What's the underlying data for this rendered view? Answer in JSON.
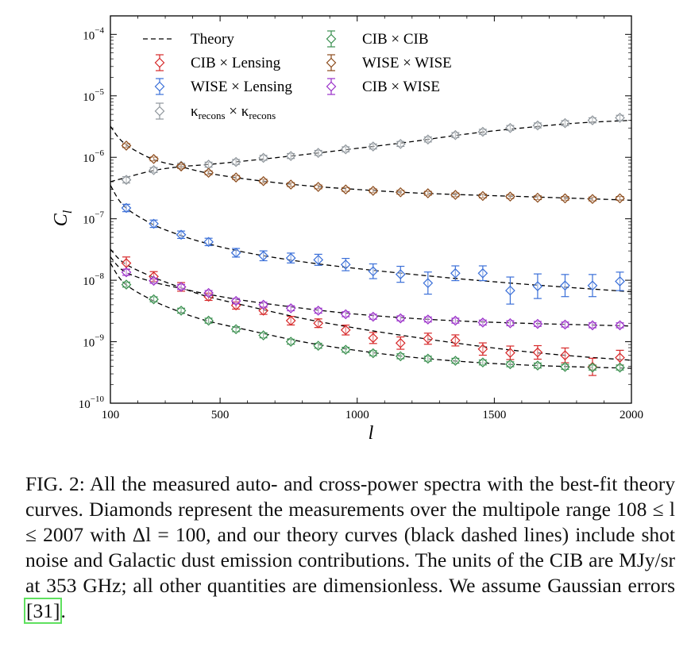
{
  "chart_data": {
    "type": "scatter",
    "xlabel": "l",
    "ylabel": "C_l",
    "xlim": [
      100,
      2000
    ],
    "ylim": [
      1e-10,
      0.0002
    ],
    "log_y": true,
    "grid": false,
    "legend_placement": "top-left, two columns",
    "x_ticks": [
      100,
      500,
      1000,
      1500,
      2000
    ],
    "y_ticks": [
      1e-10,
      1e-09,
      1e-08,
      1e-07,
      1e-06,
      1e-05,
      0.0001
    ],
    "y_tick_labels": [
      {
        "base": "10",
        "exp": "−10"
      },
      {
        "base": "10",
        "exp": "−9"
      },
      {
        "base": "10",
        "exp": "−8"
      },
      {
        "base": "10",
        "exp": "−7"
      },
      {
        "base": "10",
        "exp": "−6"
      },
      {
        "base": "10",
        "exp": "−5"
      },
      {
        "base": "10",
        "exp": "−4"
      }
    ],
    "x": [
      158,
      258,
      358,
      458,
      558,
      658,
      758,
      858,
      958,
      1058,
      1158,
      1258,
      1358,
      1458,
      1558,
      1658,
      1758,
      1858,
      1958
    ],
    "theory_label": "Theory",
    "theory_curves": [
      {
        "series": "kappa",
        "x": [
          100,
          150,
          250,
          350,
          450,
          600,
          800,
          1000,
          1200,
          1400,
          1600,
          1800,
          2000
        ],
        "y": [
          4e-07,
          4.6e-07,
          6e-07,
          7e-07,
          7.6e-07,
          8.8e-07,
          1.1e-06,
          1.4e-06,
          1.8e-06,
          2.4e-06,
          3e-06,
          3.6e-06,
          4e-06
        ]
      },
      {
        "series": "wise_wise",
        "x": [
          100,
          150,
          250,
          350,
          450,
          600,
          800,
          1000,
          1200,
          1400,
          1600,
          1800,
          2000
        ],
        "y": [
          3.2e-06,
          1.7e-06,
          9.5e-07,
          7.2e-07,
          5.6e-07,
          4.4e-07,
          3.5e-07,
          3e-07,
          2.65e-07,
          2.45e-07,
          2.3e-07,
          2.15e-07,
          2e-07
        ]
      },
      {
        "series": "wise_lensing",
        "x": [
          100,
          150,
          250,
          350,
          450,
          600,
          800,
          1000,
          1200,
          1400,
          1600,
          1800,
          2000
        ],
        "y": [
          3.5e-07,
          1.6e-07,
          8.3e-08,
          5.5e-08,
          4e-08,
          2.8e-08,
          2e-08,
          1.55e-08,
          1.25e-08,
          1.03e-08,
          8.7e-09,
          7.5e-09,
          6.5e-09
        ]
      },
      {
        "series": "cib_lensing",
        "x": [
          100,
          150,
          250,
          350,
          450,
          600,
          800,
          1000,
          1200,
          1400,
          1600,
          1800,
          2000
        ],
        "y": [
          3.2e-08,
          1.9e-08,
          1.15e-08,
          7.8e-09,
          5.5e-09,
          3.8e-09,
          2.4e-09,
          1.65e-09,
          1.2e-09,
          9e-10,
          7e-10,
          5.8e-10,
          5e-10
        ]
      },
      {
        "series": "cib_wise",
        "x": [
          100,
          150,
          250,
          350,
          450,
          600,
          800,
          1000,
          1200,
          1400,
          1600,
          1800,
          2000
        ],
        "y": [
          2.4e-08,
          1.4e-08,
          9.5e-09,
          7.5e-09,
          6e-09,
          4.6e-09,
          3.5e-09,
          2.8e-09,
          2.4e-09,
          2.15e-09,
          2e-09,
          1.9e-09,
          1.8e-09
        ]
      },
      {
        "series": "cib_cib",
        "x": [
          100,
          150,
          250,
          350,
          450,
          600,
          800,
          1000,
          1200,
          1400,
          1600,
          1800,
          2000
        ],
        "y": [
          1.9e-08,
          9e-09,
          4.8e-09,
          3.1e-09,
          2.2e-09,
          1.55e-09,
          1e-09,
          7.2e-10,
          5.6e-10,
          4.7e-10,
          4.2e-10,
          3.9e-10,
          3.7e-10
        ]
      }
    ],
    "series": [
      {
        "key": "cib_lensing",
        "name": "CIB × Lensing",
        "color": "#d62728",
        "y": [
          1.9e-08,
          1.15e-08,
          7.8e-09,
          5.4e-09,
          3.9e-09,
          3.2e-09,
          2.2e-09,
          2e-09,
          1.55e-09,
          1.15e-09,
          9.5e-10,
          1.12e-09,
          1.05e-09,
          7.6e-10,
          6.6e-10,
          6.7e-10,
          6e-10,
          3.9e-10,
          5.5e-10
        ],
        "err": [
          0.1,
          0.08,
          0.07,
          0.06,
          0.06,
          0.06,
          0.07,
          0.07,
          0.08,
          0.09,
          0.1,
          0.09,
          0.09,
          0.1,
          0.11,
          0.11,
          0.12,
          0.14,
          0.12
        ]
      },
      {
        "key": "wise_lensing",
        "name": "WISE × Lensing",
        "color": "#3a6fd8",
        "y": [
          1.5e-07,
          8.3e-08,
          5.5e-08,
          4.2e-08,
          2.8e-08,
          2.5e-08,
          2.3e-08,
          2.15e-08,
          1.8e-08,
          1.4e-08,
          1.25e-08,
          9e-09,
          1.3e-08,
          1.3e-08,
          6.8e-09,
          8e-09,
          8.2e-09,
          8.2e-09,
          9.6e-09
        ],
        "err": [
          0.06,
          0.06,
          0.06,
          0.06,
          0.07,
          0.08,
          0.08,
          0.09,
          0.1,
          0.12,
          0.13,
          0.18,
          0.12,
          0.12,
          0.22,
          0.2,
          0.18,
          0.18,
          0.15
        ]
      },
      {
        "key": "kappa",
        "name": "κrecons × κrecons",
        "color": "#8f969c",
        "y": [
          4.3e-07,
          6.2e-07,
          7.3e-07,
          7.6e-07,
          8.4e-07,
          9.8e-07,
          1.05e-06,
          1.18e-06,
          1.35e-06,
          1.5e-06,
          1.65e-06,
          1.95e-06,
          2.3e-06,
          2.6e-06,
          3e-06,
          3.3e-06,
          3.6e-06,
          4e-06,
          4.4e-06
        ],
        "err": [
          0.05,
          0.04,
          0.04,
          0.04,
          0.04,
          0.04,
          0.04,
          0.04,
          0.04,
          0.04,
          0.04,
          0.04,
          0.04,
          0.04,
          0.04,
          0.04,
          0.04,
          0.04,
          0.04
        ]
      },
      {
        "key": "cib_cib",
        "name": "CIB × CIB",
        "color": "#3a8f4f",
        "y": [
          8.5e-09,
          4.9e-09,
          3.2e-09,
          2.2e-09,
          1.6e-09,
          1.27e-09,
          1e-09,
          8.6e-10,
          7.4e-10,
          6.5e-10,
          5.8e-10,
          5.3e-10,
          4.9e-10,
          4.6e-10,
          4.3e-10,
          4.1e-10,
          3.9e-10,
          3.8e-10,
          3.8e-10
        ],
        "err": [
          0.04,
          0.04,
          0.04,
          0.04,
          0.04,
          0.04,
          0.04,
          0.04,
          0.04,
          0.04,
          0.04,
          0.04,
          0.04,
          0.04,
          0.04,
          0.04,
          0.04,
          0.04,
          0.04
        ]
      },
      {
        "key": "wise_wise",
        "name": "WISE × WISE",
        "color": "#8b4a1a",
        "y": [
          1.55e-06,
          9.4e-07,
          7.1e-07,
          5.6e-07,
          4.7e-07,
          4.1e-07,
          3.6e-07,
          3.3e-07,
          3e-07,
          2.85e-07,
          2.7e-07,
          2.6e-07,
          2.45e-07,
          2.35e-07,
          2.3e-07,
          2.2e-07,
          2.15e-07,
          2.1e-07,
          2.15e-07
        ],
        "err": [
          0.03,
          0.03,
          0.03,
          0.03,
          0.03,
          0.03,
          0.03,
          0.03,
          0.03,
          0.03,
          0.03,
          0.03,
          0.03,
          0.03,
          0.03,
          0.03,
          0.03,
          0.03,
          0.03
        ]
      },
      {
        "key": "cib_wise",
        "name": "CIB × WISE",
        "color": "#9a30c9",
        "y": [
          1.35e-08,
          9.8e-09,
          7.8e-09,
          6.2e-09,
          4.6e-09,
          4e-09,
          3.5e-09,
          3.2e-09,
          2.8e-09,
          2.55e-09,
          2.4e-09,
          2.3e-09,
          2.2e-09,
          2.05e-09,
          2e-09,
          1.95e-09,
          1.9e-09,
          1.85e-09,
          1.85e-09
        ],
        "err": [
          0.05,
          0.04,
          0.04,
          0.04,
          0.04,
          0.04,
          0.04,
          0.04,
          0.04,
          0.04,
          0.04,
          0.04,
          0.04,
          0.04,
          0.04,
          0.04,
          0.04,
          0.04,
          0.04
        ]
      }
    ]
  },
  "caption": {
    "text": "FIG. 2: All the measured auto- and cross-power spectra with the best-fit theory curves. Diamonds represent the measurements over the multipole range 108 ≤ l ≤ 2007 with Δl = 100, and our theory curves (black dashed lines) include shot noise and Galactic dust emission contributions. The units of the CIB are MJy/sr at 353 GHz; all other quantities are dimensionless. We assume Gaussian errors ",
    "ref": "[31]",
    "end": "."
  }
}
